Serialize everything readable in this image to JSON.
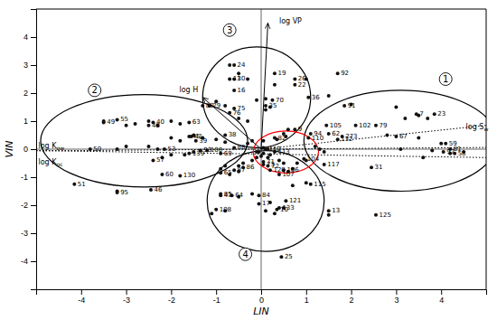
{
  "chart_data": {
    "type": "scatter",
    "x_label": "LIN",
    "y_label": "VIN",
    "xlim": [
      -5,
      5
    ],
    "ylim": [
      -5,
      5
    ],
    "xticks": [
      -4,
      -3,
      -2,
      -1,
      0,
      1,
      2,
      3,
      4
    ],
    "yticks": [
      -4,
      -3,
      -2,
      -1,
      0,
      1,
      2,
      3,
      4
    ],
    "hlines": [
      0
    ],
    "vlines": [
      0
    ],
    "series": [
      {
        "color": "#111111",
        "x": [
          0.05,
          -0.1,
          0.0,
          0.2,
          0.1,
          3.5,
          3.2,
          3.7,
          0.6,
          0.5,
          0.55,
          0.35,
          0.05,
          -0.2,
          -0.3,
          0.15,
          -0.05,
          0.05,
          0.2,
          0.15,
          -0.1,
          -0.2,
          0.4,
          0.5,
          -0.4,
          -0.5,
          1.0,
          0.8,
          1.2,
          1.3,
          1.4,
          0.7,
          0.6,
          -0.8,
          -0.9,
          2.0,
          3.0,
          3.5,
          4.0,
          4.5,
          3.8,
          4.2,
          2.8,
          3.1,
          3.6,
          -3.5,
          -3.0,
          -2.8,
          -2.5,
          -2.3,
          -2.0,
          -1.8,
          -3.2,
          -0.5,
          -0.7,
          0.7,
          1.0,
          -0.2,
          -0.5,
          0.2,
          0.5,
          0.1,
          0.3,
          -0.8,
          -1.1,
          1.5,
          -0.7,
          -0.5,
          -0.3,
          0.3,
          -0.8,
          -1.0,
          -0.1,
          0.1,
          1.0,
          1.5,
          -0.5,
          -0.3,
          -1.5,
          -1.3,
          -1.0,
          -0.8,
          -2.0,
          -1.8,
          -2.5,
          -2.3,
          -3.0,
          -3.2,
          -1.5,
          -1.7,
          -2.0,
          -2.2
        ],
        "values": [
          0.05,
          -0.1,
          -0.25,
          1.5,
          1.4,
          1.2,
          1.1,
          1.1,
          0.7,
          0.55,
          0.45,
          0.35,
          0.3,
          0.3,
          0.2,
          0.0,
          -0.1,
          -0.15,
          -0.2,
          -0.3,
          -0.3,
          -0.4,
          -0.4,
          -0.5,
          -0.5,
          -0.6,
          -0.4,
          -0.5,
          0.1,
          0.0,
          -0.1,
          -0.7,
          -0.8,
          -0.6,
          -0.7,
          1.6,
          1.5,
          0.4,
          0.2,
          -0.1,
          -0.05,
          -0.15,
          0.5,
          0.0,
          -0.3,
          1.0,
          0.85,
          0.9,
          1.0,
          0.85,
          1.0,
          0.9,
          -1.5,
          -0.8,
          -0.9,
          -1.3,
          -1.2,
          -1.6,
          -1.7,
          -1.9,
          -2.1,
          -2.2,
          -2.3,
          -2.2,
          -2.3,
          -2.35,
          3.0,
          2.7,
          2.5,
          2.3,
          1.55,
          1.7,
          1.75,
          1.8,
          2.5,
          1.9,
          1.1,
          1.0,
          0.5,
          0.4,
          0.35,
          0.25,
          0.4,
          0.3,
          0.1,
          0.0,
          0.1,
          0.0,
          -0.1,
          -0.2,
          -0.2,
          -0.3
        ]
      },
      {
        "color": "#111111",
        "point_labels": [
          "7",
          "9",
          "10",
          "11",
          "13",
          "16",
          "17",
          "19",
          "22",
          "23",
          "24",
          "25",
          "26",
          "29",
          "30",
          "31",
          "35",
          "36",
          "38",
          "39",
          "40",
          "41",
          "43",
          "45",
          "46",
          "48",
          "49",
          "50",
          "51",
          "53",
          "55",
          "57",
          "58",
          "59",
          "60",
          "62",
          "63",
          "64",
          "65",
          "67",
          "69",
          "70",
          "71",
          "72",
          "73",
          "75",
          "76",
          "79",
          "80",
          "81",
          "82",
          "84",
          "85",
          "86",
          "87",
          "88",
          "91",
          "92",
          "93",
          "94",
          "95",
          "97",
          "100",
          "102",
          "104",
          "105",
          "106",
          "107",
          "108",
          "110",
          "112",
          "113",
          "115",
          "117",
          "120",
          "121",
          "125",
          "130",
          "132",
          "133",
          "139",
          "273"
        ],
        "x": [
          3.45,
          0.75,
          0.35,
          -0.7,
          1.5,
          -0.6,
          -0.05,
          0.3,
          0.75,
          3.85,
          -0.6,
          0.45,
          0.75,
          -1.15,
          -0.6,
          2.45,
          0.1,
          1.05,
          -0.8,
          -1.45,
          -2.4,
          -1.55,
          -0.9,
          -1.6,
          -2.45,
          -2.5,
          -3.5,
          -3.8,
          -4.15,
          -2.15,
          -3.2,
          -2.4,
          4.3,
          4.1,
          -2.2,
          1.5,
          -1.6,
          -0.65,
          -0.9,
          3.0,
          -0.9,
          0.25,
          0.05,
          0.15,
          0.05,
          -0.6,
          -0.7,
          2.55,
          -1.3,
          4.2,
          0.3,
          -0.05,
          -0.9,
          -0.4,
          -0.6,
          -0.6,
          1.85,
          1.7,
          -1.35,
          1.1,
          -3.2,
          4.05,
          -1.2,
          2.1,
          0.95,
          1.45,
          0.5,
          0.4,
          -1.0,
          1.05,
          0.1,
          0.3,
          1.1,
          1.4,
          0.2,
          0.55,
          2.55,
          -1.8,
          1.7,
          0.4,
          -1.6,
          1.8
        ],
        "values": [
          1.25,
          0.7,
          -2.15,
          2.5,
          -2.2,
          2.1,
          -1.95,
          2.7,
          2.3,
          1.25,
          3.0,
          -3.85,
          2.5,
          1.55,
          2.5,
          -0.65,
          1.55,
          1.85,
          0.5,
          0.3,
          0.95,
          0.45,
          -1.65,
          0.45,
          -1.45,
          0.85,
          0.95,
          0.0,
          -1.25,
          0.0,
          1.05,
          -0.4,
          -0.15,
          0.2,
          -0.9,
          0.55,
          0.95,
          -1.65,
          -0.85,
          0.45,
          -0.15,
          1.75,
          -0.45,
          -0.6,
          -0.55,
          1.45,
          1.3,
          0.85,
          1.55,
          0.0,
          0.4,
          -1.65,
          -1.6,
          -0.65,
          -0.75,
          0.05,
          1.55,
          2.7,
          -0.05,
          0.55,
          -1.55,
          -0.1,
          -0.05,
          0.85,
          -0.35,
          0.85,
          -0.75,
          -0.9,
          -2.15,
          0.4,
          0.0,
          -0.1,
          -1.25,
          -0.55,
          -0.75,
          -1.85,
          -2.35,
          -0.95,
          0.35,
          -2.1,
          -0.15,
          0.45
        ]
      }
    ],
    "ellipses": [
      {
        "cx": 3.1,
        "cy": 0.3,
        "width": 4.3,
        "height": 3.6,
        "color": "black",
        "label": "1",
        "label_x": 4.1,
        "label_y": 2.5
      },
      {
        "cx": -2.6,
        "cy": 0.3,
        "width": 4.6,
        "height": 3.3,
        "color": "black",
        "label": "2",
        "label_x": -3.7,
        "label_y": 2.1
      },
      {
        "cx": -0.1,
        "cy": 1.85,
        "width": 2.4,
        "height": 3.6,
        "color": "black",
        "label": "3",
        "label_x": -0.7,
        "label_y": 4.25
      },
      {
        "cx": 0.1,
        "cy": -1.85,
        "width": 2.6,
        "height": 3.6,
        "color": "black",
        "label": "4",
        "label_x": -0.35,
        "label_y": -3.75
      },
      {
        "cx": 0.55,
        "cy": -0.1,
        "width": 1.45,
        "height": 1.5,
        "color": "red"
      }
    ],
    "arrows": [
      {
        "x": [
          0,
          0.15
        ],
        "values": [
          0,
          4.5
        ],
        "label": "log VP",
        "label_x": 0.4,
        "label_y": 4.55
      },
      {
        "x": [
          0,
          -1.3
        ],
        "values": [
          0,
          1.85
        ],
        "label": "log H",
        "label_x": -1.4,
        "label_y": 2.1
      }
    ],
    "lines": [
      {
        "x": [
          -5,
          5
        ],
        "values": [
          -0.06,
          0.06
        ],
        "line_style": "dotted",
        "label": "log K",
        "subscript": "ow",
        "label_x": -4.95,
        "label_y": 0.12
      },
      {
        "x": [
          -5,
          5
        ],
        "values": [
          -0.05,
          -0.3
        ],
        "line_style": "dotted",
        "label": "log K",
        "subscript": "oc",
        "label_x": -4.95,
        "label_y": -0.45
      },
      {
        "x": [
          0.0,
          5.0
        ],
        "values": [
          0.0,
          0.85
        ],
        "line_style": "dotted",
        "label": "log S",
        "subscript": "w",
        "label_x": 4.55,
        "label_y": 0.8
      }
    ]
  }
}
